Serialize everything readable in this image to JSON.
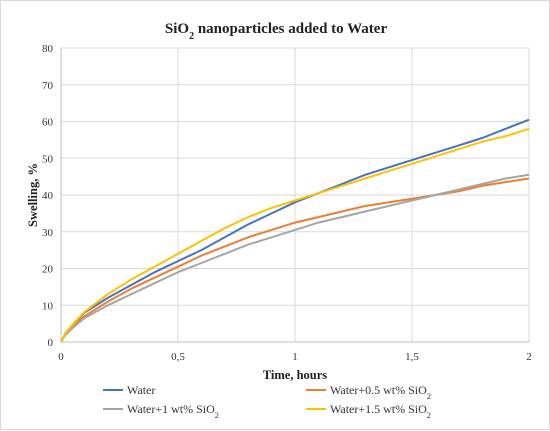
{
  "chart_data": {
    "type": "line",
    "title": "SiO2 nanoparticles added to Water",
    "title_parts": {
      "main": "SiO",
      "sub": "2",
      "rest": " nanoparticles added to Water"
    },
    "xlabel": "Time, hours",
    "ylabel": "Swelling, %",
    "xlim": [
      0,
      2
    ],
    "ylim": [
      0,
      80
    ],
    "x_ticks": [
      0,
      0.5,
      1,
      1.5,
      2
    ],
    "x_tick_labels": [
      "0",
      "0,5",
      "1",
      "1,5",
      "2"
    ],
    "y_ticks": [
      0,
      10,
      20,
      30,
      40,
      50,
      60,
      70,
      80
    ],
    "y_tick_labels": [
      "0",
      "10",
      "20",
      "30",
      "40",
      "50",
      "60",
      "70",
      "80"
    ],
    "grid": true,
    "legend_position": "bottom",
    "x": [
      0,
      0.02,
      0.05,
      0.1,
      0.2,
      0.3,
      0.4,
      0.5,
      0.6,
      0.7,
      0.8,
      0.9,
      1.0,
      1.1,
      1.2,
      1.3,
      1.4,
      1.5,
      1.6,
      1.7,
      1.8,
      1.9,
      2.0
    ],
    "series": [
      {
        "name": "Water",
        "legend_main": "Water",
        "legend_sub": "",
        "color": "#4472C4",
        "values": [
          0,
          2.5,
          4.5,
          8,
          12,
          15.5,
          19,
          22,
          25,
          28.5,
          32,
          35,
          38,
          40.5,
          43,
          45.5,
          47.5,
          49.5,
          51.5,
          53.5,
          55.5,
          58,
          60.5
        ]
      },
      {
        "name": "Water+0.5 wt% SiO2",
        "legend_main": "Water+0.5 wt% SiO",
        "legend_sub": "2",
        "color": "#ED7D31",
        "values": [
          0,
          2.3,
          4.2,
          7,
          11,
          14.5,
          17.5,
          20.5,
          23.5,
          26,
          28.5,
          30.5,
          32.5,
          34,
          35.5,
          37,
          38,
          39,
          40,
          41,
          42.5,
          43.5,
          44.5
        ]
      },
      {
        "name": "Water+1 wt% SiO2",
        "legend_main": "Water+1 wt% SiO",
        "legend_sub": "2",
        "color": "#A5A5A5",
        "values": [
          0,
          2,
          3.8,
          6.5,
          10,
          13,
          16,
          19,
          21.5,
          24,
          26.5,
          28.5,
          30.5,
          32.5,
          34,
          35.5,
          37,
          38.5,
          40,
          41.5,
          43,
          44.5,
          45.5
        ]
      },
      {
        "name": "Water+1.5 wt% SiO2",
        "legend_main": "Water+1.5 wt% SiO",
        "legend_sub": "2",
        "color": "#FFC000",
        "values": [
          0,
          2.5,
          4.8,
          8.2,
          13,
          17,
          20.5,
          24,
          27.5,
          31,
          34,
          36.5,
          38.5,
          40.5,
          42.5,
          44.5,
          46.5,
          48.5,
          50.5,
          52.5,
          54.5,
          56,
          58
        ]
      }
    ]
  }
}
